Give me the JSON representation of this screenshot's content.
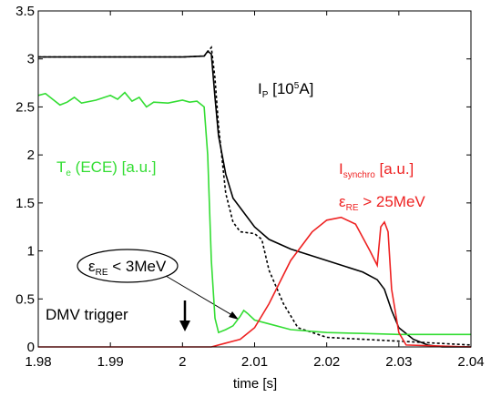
{
  "chart_data": {
    "type": "line",
    "x_label": "time [s]",
    "xlim": [
      1.98,
      2.04
    ],
    "xticks": [
      1.98,
      1.99,
      2,
      2.01,
      2.02,
      2.03,
      2.04
    ],
    "ylim": [
      0,
      3.5
    ],
    "yticks": [
      0,
      0.5,
      1,
      1.5,
      2,
      2.5,
      3,
      3.5
    ],
    "series": [
      {
        "color": "#000000",
        "dash": false,
        "x": [
          1.98,
          1.99,
          2.0,
          2.003,
          2.0035,
          2.004,
          2.0045,
          2.005,
          2.006,
          2.007,
          2.008,
          2.01,
          2.012,
          2.015,
          2.02,
          2.025,
          2.027,
          2.028,
          2.029,
          2.03,
          2.032,
          2.034,
          2.036,
          2.04
        ],
        "values": [
          3.02,
          3.02,
          3.02,
          3.03,
          3.08,
          3.05,
          2.6,
          2.2,
          1.8,
          1.55,
          1.45,
          1.25,
          1.12,
          1.02,
          0.9,
          0.78,
          0.7,
          0.6,
          0.38,
          0.2,
          0.08,
          0.02,
          0.0,
          0.0
        ]
      },
      {
        "color": "#000000",
        "dash": true,
        "x": [
          1.98,
          1.99,
          2.0,
          2.003,
          2.004,
          2.0045,
          2.005,
          2.006,
          2.007,
          2.008,
          2.01,
          2.011,
          2.012,
          2.014,
          2.016,
          2.02,
          2.03,
          2.04
        ],
        "values": [
          3.02,
          3.02,
          3.02,
          3.03,
          3.12,
          2.8,
          2.3,
          1.6,
          1.3,
          1.2,
          1.18,
          1.12,
          0.8,
          0.45,
          0.2,
          0.1,
          0.06,
          0.02
        ]
      },
      {
        "color": "#33dd33",
        "dash": false,
        "x": [
          1.98,
          1.981,
          1.982,
          1.983,
          1.984,
          1.985,
          1.986,
          1.988,
          1.99,
          1.991,
          1.992,
          1.993,
          1.994,
          1.995,
          1.996,
          1.998,
          2.0,
          2.001,
          2.002,
          2.003,
          2.0035,
          2.004,
          2.0045,
          2.005,
          2.006,
          2.007,
          2.008,
          2.0085,
          2.009,
          2.01,
          2.012,
          2.015,
          2.02,
          2.025,
          2.03,
          2.035,
          2.04
        ],
        "values": [
          2.62,
          2.64,
          2.58,
          2.52,
          2.55,
          2.6,
          2.54,
          2.57,
          2.62,
          2.58,
          2.65,
          2.56,
          2.6,
          2.5,
          2.55,
          2.54,
          2.57,
          2.55,
          2.56,
          2.5,
          2.0,
          0.9,
          0.3,
          0.15,
          0.18,
          0.22,
          0.32,
          0.38,
          0.35,
          0.28,
          0.24,
          0.18,
          0.15,
          0.14,
          0.13,
          0.13,
          0.13
        ]
      },
      {
        "color": "#ee2222",
        "dash": false,
        "x": [
          1.98,
          2.004,
          2.006,
          2.008,
          2.01,
          2.012,
          2.015,
          2.018,
          2.02,
          2.022,
          2.024,
          2.026,
          2.027,
          2.0275,
          2.028,
          2.0285,
          2.029,
          2.03,
          2.031,
          2.04
        ],
        "values": [
          0.0,
          0.0,
          0.04,
          0.08,
          0.2,
          0.45,
          0.9,
          1.2,
          1.32,
          1.35,
          1.28,
          1.0,
          0.85,
          1.25,
          1.3,
          1.2,
          0.6,
          0.15,
          0.02,
          0.0
        ]
      }
    ],
    "annotations": [
      {
        "color": "#000000",
        "parts": [
          {
            "text": "I"
          },
          {
            "text": "P",
            "style": "sub"
          },
          {
            "text": "  [10"
          },
          {
            "text": "5",
            "style": "sup"
          },
          {
            "text": "A]"
          }
        ]
      },
      {
        "color": "#33dd33",
        "parts": [
          {
            "text": "T"
          },
          {
            "text": "e",
            "style": "sub"
          },
          {
            "text": " (ECE) [a.u.]"
          }
        ]
      },
      {
        "color": "#ee2222",
        "parts": [
          {
            "text": "I"
          },
          {
            "text": "synchro",
            "style": "sub"
          },
          {
            "text": "  [a.u.]"
          }
        ]
      },
      {
        "color": "#ee2222",
        "parts": [
          {
            "text": "ε"
          },
          {
            "text": "RE",
            "style": "sub"
          },
          {
            "text": " > 25MeV"
          }
        ]
      },
      {
        "color": "#000000",
        "parts": [
          {
            "text": "ε"
          },
          {
            "text": "RE",
            "style": "sub"
          },
          {
            "text": " < 3MeV"
          }
        ]
      },
      {
        "color": "#000000",
        "parts": [
          {
            "text": "DMV trigger"
          }
        ]
      }
    ]
  }
}
